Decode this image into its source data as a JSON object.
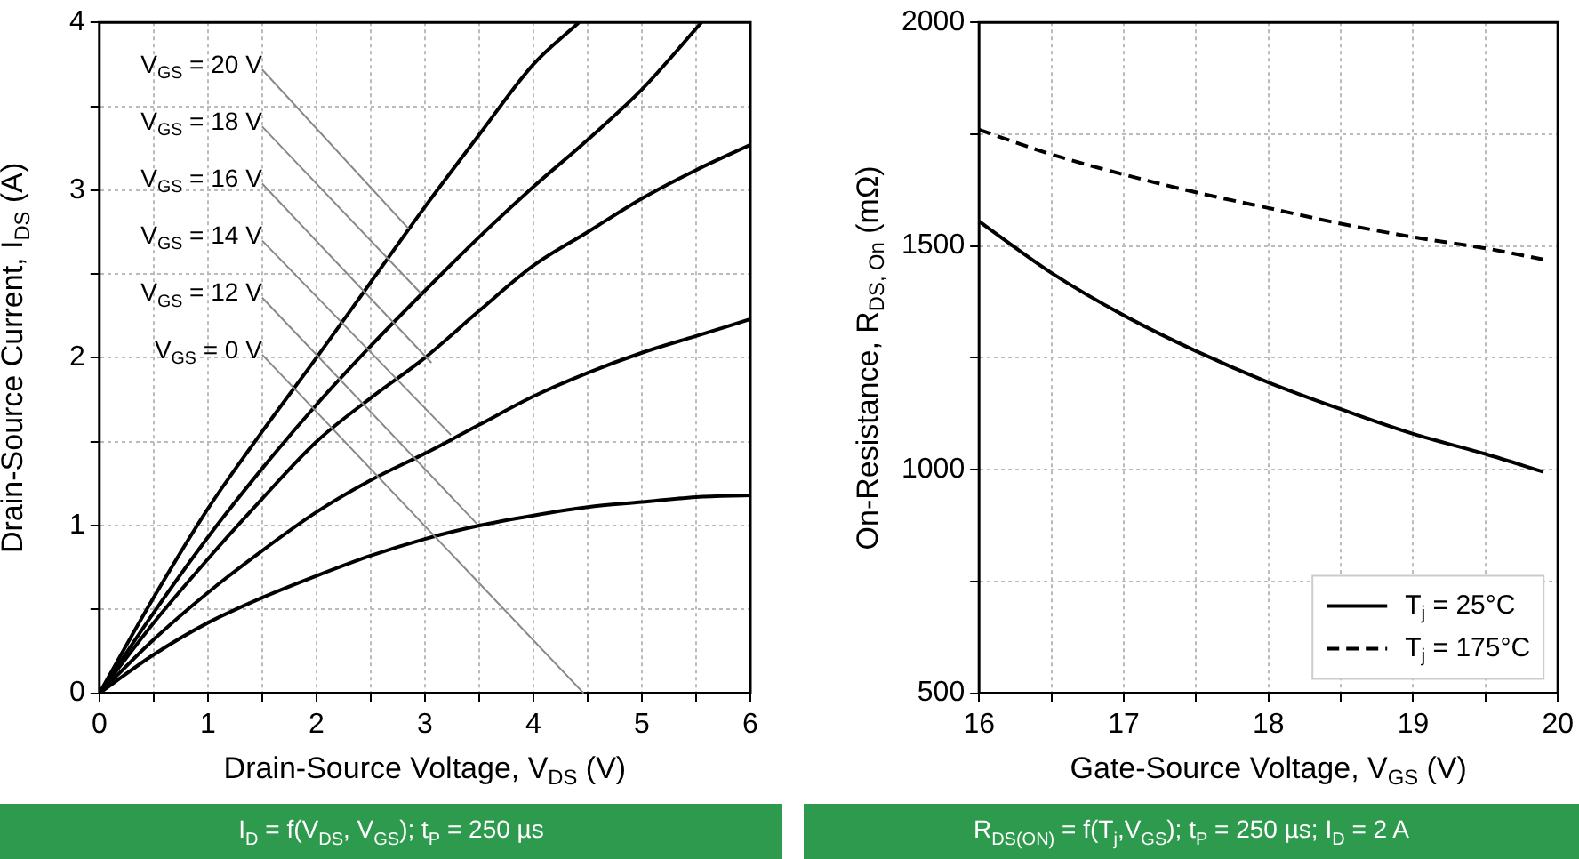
{
  "chart_data": [
    {
      "type": "line",
      "xlabel": "Drain-Source Voltage, V$_{DS}$ (V)",
      "ylabel": "Drain-Source Current, I$_{DS}$ (A)",
      "xlim": [
        0,
        6
      ],
      "ylim": [
        0,
        4
      ],
      "xticks": [
        0,
        {
          "value": 0.5,
          "label": null
        },
        1,
        {
          "value": 1.5,
          "label": null
        },
        2,
        {
          "value": 2.5,
          "label": null
        },
        3,
        {
          "value": 3.5,
          "label": null
        },
        4,
        {
          "value": 4.5,
          "label": null
        },
        5,
        {
          "value": 5.5,
          "label": null
        },
        6
      ],
      "yticks": [
        0,
        {
          "value": 0.5,
          "label": null
        },
        1,
        {
          "value": 1.5,
          "label": null
        },
        2,
        {
          "value": 2.5,
          "label": null
        },
        3,
        {
          "value": 3.5,
          "label": null
        },
        4
      ],
      "grid": true,
      "legend": false,
      "marker": "none",
      "line_style": "solid",
      "series": [
        {
          "color": "#000000",
          "x": [
            0,
            0.5,
            1,
            1.5,
            2,
            2.5,
            3,
            3.5,
            4,
            4.42
          ],
          "values": [
            0,
            0.57,
            1.1,
            1.56,
            2.0,
            2.45,
            2.9,
            3.33,
            3.75,
            4.0
          ]
        },
        {
          "color": "#000000",
          "x": [
            0,
            0.5,
            1,
            1.5,
            2,
            2.5,
            3,
            3.5,
            4,
            4.5,
            5,
            5.55
          ],
          "values": [
            0,
            0.48,
            0.93,
            1.34,
            1.72,
            2.07,
            2.4,
            2.72,
            3.02,
            3.3,
            3.6,
            4.0
          ]
        },
        {
          "color": "#000000",
          "x": [
            0,
            0.5,
            1,
            1.5,
            2,
            2.5,
            3,
            3.5,
            4,
            4.5,
            5,
            5.5,
            6
          ],
          "values": [
            0,
            0.42,
            0.8,
            1.16,
            1.5,
            1.76,
            2.0,
            2.28,
            2.55,
            2.75,
            2.95,
            3.12,
            3.27
          ]
        },
        {
          "color": "#000000",
          "x": [
            0,
            0.5,
            1,
            1.5,
            2,
            2.5,
            3,
            3.5,
            4,
            4.5,
            5,
            5.5,
            6
          ],
          "values": [
            0,
            0.32,
            0.6,
            0.85,
            1.08,
            1.27,
            1.43,
            1.6,
            1.77,
            1.91,
            2.03,
            2.13,
            2.23
          ]
        },
        {
          "color": "#000000",
          "x": [
            0,
            0.5,
            1,
            1.5,
            2,
            2.5,
            3,
            3.5,
            4,
            4.5,
            5,
            5.5,
            6
          ],
          "values": [
            0,
            0.23,
            0.42,
            0.57,
            0.7,
            0.82,
            0.92,
            1.0,
            1.06,
            1.11,
            1.14,
            1.17,
            1.18
          ]
        }
      ],
      "annotations": [
        {
          "text": "V$_{GS}$ = 20 V",
          "x": 2.85,
          "y": 2.77
        },
        {
          "text": "V$_{GS}$ = 18 V",
          "x": 2.97,
          "y": 2.38
        },
        {
          "text": "V$_{GS}$ = 16 V",
          "x": 3.06,
          "y": 1.97
        },
        {
          "text": "V$_{GS}$ = 14 V",
          "x": 3.24,
          "y": 1.54
        },
        {
          "text": "V$_{GS}$ = 12 V",
          "x": 3.48,
          "y": 1.01
        },
        "V$_{GS}$ = 0 V",
        "I$_{D}$ = f(V$_{DS}$, V$_{GS}$); t$_{P}$ = 250 µs"
      ]
    },
    {
      "type": "line",
      "xlabel": "Gate-Source Voltage, V$_{GS}$ (V)",
      "ylabel": "On-Resistance, R$_{DS, On}$ (mΩ)",
      "xlim": [
        16,
        20
      ],
      "ylim": [
        500,
        2000
      ],
      "xticks": [
        16,
        {
          "value": 16.5,
          "label": null
        },
        17,
        {
          "value": 17.5,
          "label": null
        },
        18,
        {
          "value": 18.5,
          "label": null
        },
        19,
        {
          "value": 19.5,
          "label": null
        },
        20
      ],
      "yticks": [
        500,
        {
          "value": 750,
          "label": null
        },
        1000,
        {
          "value": 1250,
          "label": null
        },
        1500,
        {
          "value": 1750,
          "label": null
        },
        2000
      ],
      "grid": true,
      "legend": "bottom right",
      "marker": "none",
      "series": [
        {
          "name": "T$_{j}$ = 25°C",
          "color": "#000000",
          "line_style": "solid",
          "x": [
            16,
            16.5,
            17,
            17.5,
            18,
            18.5,
            19,
            19.5,
            19.9
          ],
          "values": [
            1555,
            1440,
            1345,
            1265,
            1195,
            1135,
            1080,
            1035,
            995
          ]
        },
        {
          "name": "T$_{j}$ = 175°C",
          "color": "#000000",
          "line_style": "dashed",
          "x": [
            16,
            16.5,
            17,
            17.5,
            18,
            18.5,
            19,
            19.5,
            19.9
          ],
          "values": [
            1760,
            1705,
            1660,
            1620,
            1585,
            1550,
            1520,
            1495,
            1470
          ]
        }
      ],
      "annotations": [
        "R$_{DS(ON)}$ = f(T$_{j}$,V$_{GS}$); t$_{P}$ = 250 µs; I$_{D}$ = 2 A"
      ]
    }
  ]
}
